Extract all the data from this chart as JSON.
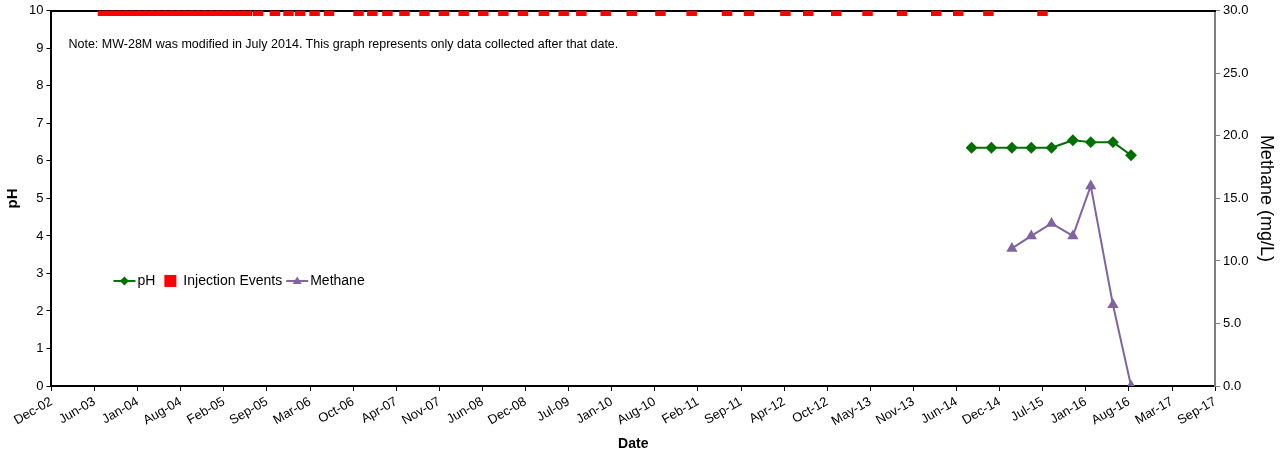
{
  "chart_data": {
    "type": "line",
    "xlabel": "Date",
    "ylabel": "pH",
    "y2label": "Methane (mg/L)",
    "annotations": [
      "Note: MW-28M was modified in July 2014. This graph represents only data collected after that date."
    ],
    "xlim": [
      "2002-12-10",
      "2017-09-22"
    ],
    "xticks": [
      {
        "value": "2002-12-10",
        "label": "Dec-02"
      },
      {
        "value": "2003-06-28",
        "label": "Jun-03"
      },
      {
        "value": "2004-01-14",
        "label": "Jan-04"
      },
      {
        "value": "2004-08-01",
        "label": "Aug-04"
      },
      {
        "value": "2005-02-17",
        "label": "Feb-05"
      },
      {
        "value": "2005-09-05",
        "label": "Sep-05"
      },
      {
        "value": "2006-03-24",
        "label": "Mar-06"
      },
      {
        "value": "2006-10-10",
        "label": "Oct-06"
      },
      {
        "value": "2007-04-28",
        "label": "Apr-07"
      },
      {
        "value": "2007-11-14",
        "label": "Nov-07"
      },
      {
        "value": "2008-06-01",
        "label": "Jun-08"
      },
      {
        "value": "2008-12-18",
        "label": "Dec-08"
      },
      {
        "value": "2009-07-06",
        "label": "Jul-09"
      },
      {
        "value": "2010-01-22",
        "label": "Jan-10"
      },
      {
        "value": "2010-08-10",
        "label": "Aug-10"
      },
      {
        "value": "2011-02-26",
        "label": "Feb-11"
      },
      {
        "value": "2011-09-14",
        "label": "Sep-11"
      },
      {
        "value": "2012-04-01",
        "label": "Apr-12"
      },
      {
        "value": "2012-10-18",
        "label": "Oct-12"
      },
      {
        "value": "2013-05-06",
        "label": "May-13"
      },
      {
        "value": "2013-11-22",
        "label": "Nov-13"
      },
      {
        "value": "2014-06-10",
        "label": "Jun-14"
      },
      {
        "value": "2014-12-27",
        "label": "Dec-14"
      },
      {
        "value": "2015-07-15",
        "label": "Jul-15"
      },
      {
        "value": "2016-01-31",
        "label": "Jan-16"
      },
      {
        "value": "2016-08-18",
        "label": "Aug-16"
      },
      {
        "value": "2017-03-06",
        "label": "Mar-17"
      },
      {
        "value": "2017-09-22",
        "label": "Sep-17"
      }
    ],
    "ylim": [
      0,
      10
    ],
    "yticks": [
      0,
      1,
      2,
      3,
      4,
      5,
      6,
      7,
      8,
      9,
      10
    ],
    "y2lim": [
      0,
      30
    ],
    "y2ticks": [
      {
        "value": 0,
        "label": "0.0"
      },
      {
        "value": 5,
        "label": "5.0"
      },
      {
        "value": 10,
        "label": "10.0"
      },
      {
        "value": 15,
        "label": "15.0"
      },
      {
        "value": 20,
        "label": "20.0"
      },
      {
        "value": 25,
        "label": "25.0"
      },
      {
        "value": 30,
        "label": "30.0"
      }
    ],
    "grid": false,
    "legend": "left",
    "series": [
      {
        "name": "pH",
        "color": "#007000",
        "marker": "diamond",
        "x": [
          "2014-08-19",
          "2014-11-19",
          "2015-02-22",
          "2015-05-23",
          "2015-08-25",
          "2015-12-02",
          "2016-02-23",
          "2016-06-05",
          "2016-08-28"
        ],
        "values": [
          6.35,
          6.35,
          6.35,
          6.35,
          6.35,
          6.55,
          6.5,
          6.5,
          6.15
        ]
      },
      {
        "name": "Injection Events",
        "type": "scatter",
        "color": "#ff0000",
        "marker": "square",
        "x": [
          "2003-08-06",
          "2003-09-05",
          "2003-10-05",
          "2003-11-05",
          "2003-12-05",
          "2004-01-05",
          "2004-02-05",
          "2004-03-05",
          "2004-04-05",
          "2004-05-05",
          "2004-06-05",
          "2004-07-05",
          "2004-08-05",
          "2004-09-05",
          "2004-10-05",
          "2004-11-05",
          "2004-12-05",
          "2005-01-05",
          "2005-02-05",
          "2005-03-05",
          "2005-04-05",
          "2005-05-05",
          "2005-06-05",
          "2005-07-26",
          "2005-10-12",
          "2005-12-14",
          "2006-02-06",
          "2006-04-14",
          "2006-06-20",
          "2006-11-04",
          "2007-01-07",
          "2007-03-18",
          "2007-06-05",
          "2007-09-06",
          "2007-12-05",
          "2008-03-06",
          "2008-06-05",
          "2008-09-06",
          "2008-12-06",
          "2009-03-13",
          "2009-06-13",
          "2009-09-03",
          "2009-12-25",
          "2010-04-25",
          "2010-09-05",
          "2011-01-28",
          "2011-07-11",
          "2011-10-21",
          "2012-04-07",
          "2012-07-22",
          "2012-11-29",
          "2013-04-23",
          "2013-09-30",
          "2014-03-08",
          "2014-06-18",
          "2014-11-05",
          "2015-07-14"
        ],
        "values": [
          10,
          10,
          10,
          10,
          10,
          10,
          10,
          10,
          10,
          10,
          10,
          10,
          10,
          10,
          10,
          10,
          10,
          10,
          10,
          10,
          10,
          10,
          10,
          10,
          10,
          10,
          10,
          10,
          10,
          10,
          10,
          10,
          10,
          10,
          10,
          10,
          10,
          10,
          10,
          10,
          10,
          10,
          10,
          10,
          10,
          10,
          10,
          10,
          10,
          10,
          10,
          10,
          10,
          10,
          10,
          10,
          10
        ]
      },
      {
        "name": "Methane",
        "type": "line",
        "axis": "y2",
        "color": "#8064a2",
        "marker": "triangle",
        "x": [
          "2015-02-22",
          "2015-05-23",
          "2015-08-25",
          "2015-12-02",
          "2016-02-23",
          "2016-06-05",
          "2016-08-28"
        ],
        "values": [
          11,
          12,
          13,
          12,
          16,
          6.5,
          0
        ]
      }
    ]
  }
}
